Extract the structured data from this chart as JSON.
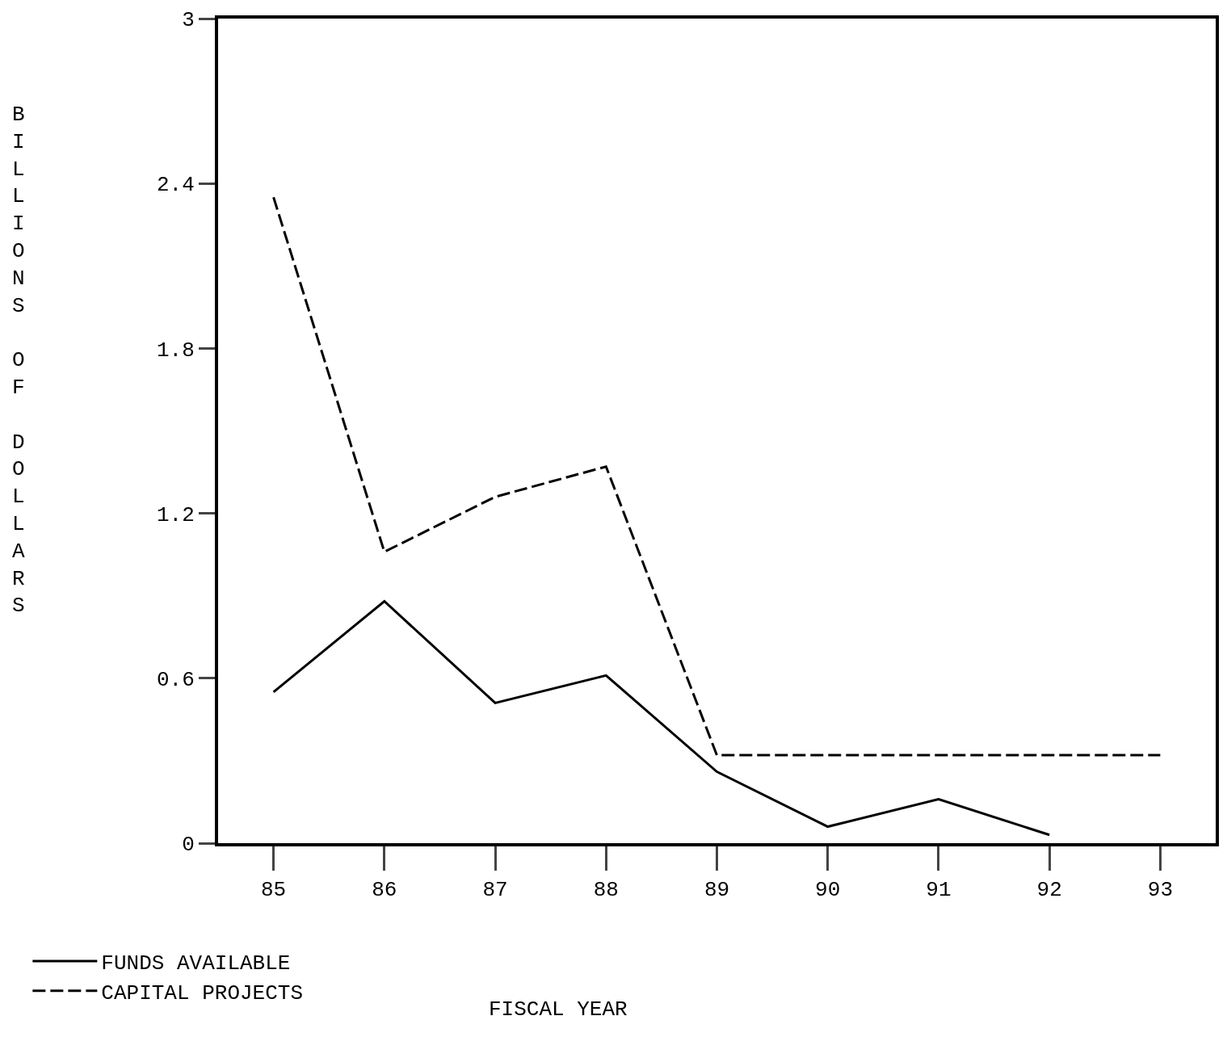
{
  "chart_data": {
    "type": "line",
    "annotations": [
      "FISCAL YEAR"
    ],
    "ylabel": "BILLIONS OF DOLLARS",
    "series": [
      {
        "name": "FUNDS AVAILABLE",
        "color": "#000000",
        "line_style": "solid",
        "x": [
          85,
          86,
          87,
          88,
          89,
          90,
          91,
          92
        ],
        "values": [
          0.55,
          0.88,
          0.51,
          0.61,
          0.26,
          0.06,
          0.16,
          0.03
        ]
      },
      {
        "name": "CAPITAL PROJECTS",
        "color": "#000000",
        "line_style": "dashed",
        "x": [
          85,
          86,
          87,
          88,
          89,
          90,
          91,
          92,
          93
        ],
        "values": [
          2.35,
          1.06,
          1.26,
          1.37,
          0.32,
          0.32,
          0.32,
          0.32,
          0.32
        ]
      }
    ],
    "xlim": [
      84.5,
      93.5
    ],
    "ylim": [
      0,
      3
    ],
    "xticks": [
      85,
      86,
      87,
      88,
      89,
      90,
      91,
      92,
      93
    ],
    "yticks": [
      0,
      0.6,
      1.2,
      1.8,
      2.4,
      3
    ],
    "legend": "bottom left",
    "marker": "none"
  }
}
